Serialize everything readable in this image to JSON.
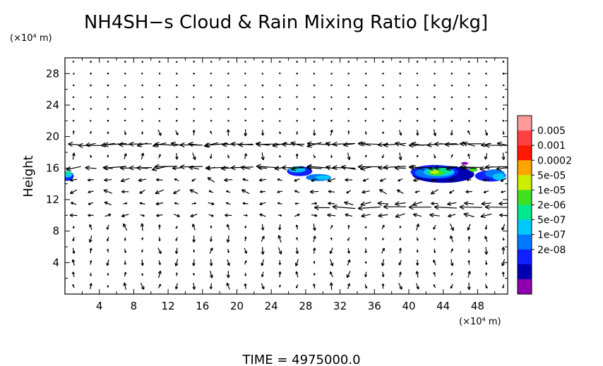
{
  "chart_data": {
    "type": "heatmap",
    "title": "NH4SH−s Cloud & Rain Mixing Ratio [kg/kg]",
    "ylabel": "Height",
    "y_unit": "(×10⁴ m)",
    "x_unit": "(×10⁴ m)",
    "xlim": [
      0,
      51.5
    ],
    "ylim": [
      0,
      30
    ],
    "xticks": [
      4,
      8,
      12,
      16,
      20,
      24,
      28,
      32,
      36,
      40,
      44,
      48
    ],
    "yticks": [
      4,
      8,
      12,
      16,
      20,
      24,
      28
    ],
    "colorbar": {
      "labels": [
        "0.005",
        "0.001",
        "0.0002",
        "5e-05",
        "1e-05",
        "2e-06",
        "5e-07",
        "1e-07",
        "2e-08"
      ],
      "colors": [
        "#ff9a9a",
        "#ff4040",
        "#ff1800",
        "#ffa500",
        "#ccee00",
        "#40e020",
        "#00e890",
        "#00c8ff",
        "#0078ff",
        "#1020ff",
        "#0000b0",
        "#9000b0"
      ]
    },
    "regions": [
      {
        "name": "left-edge",
        "x": [
          0,
          1.5
        ],
        "y": [
          14.2,
          16.4
        ],
        "level": "1e-07"
      },
      {
        "name": "mid",
        "x": [
          25.5,
          33.5
        ],
        "y": [
          14.0,
          16.3
        ],
        "level": "5e-07"
      },
      {
        "name": "right",
        "x": [
          41,
          51.5
        ],
        "y": [
          13.6,
          17.0
        ],
        "level": "5e-05"
      }
    ],
    "jets": [
      {
        "y": 19.0,
        "x": [
          1,
          51.5
        ],
        "direction": "west"
      },
      {
        "y": 16.1,
        "x": [
          4,
          51.5
        ],
        "direction": "west"
      },
      {
        "y": 11.0,
        "x": [
          29,
          51.5
        ],
        "direction": "west"
      }
    ]
  },
  "footer": {
    "time_label": "TIME  =  4975000.0"
  }
}
